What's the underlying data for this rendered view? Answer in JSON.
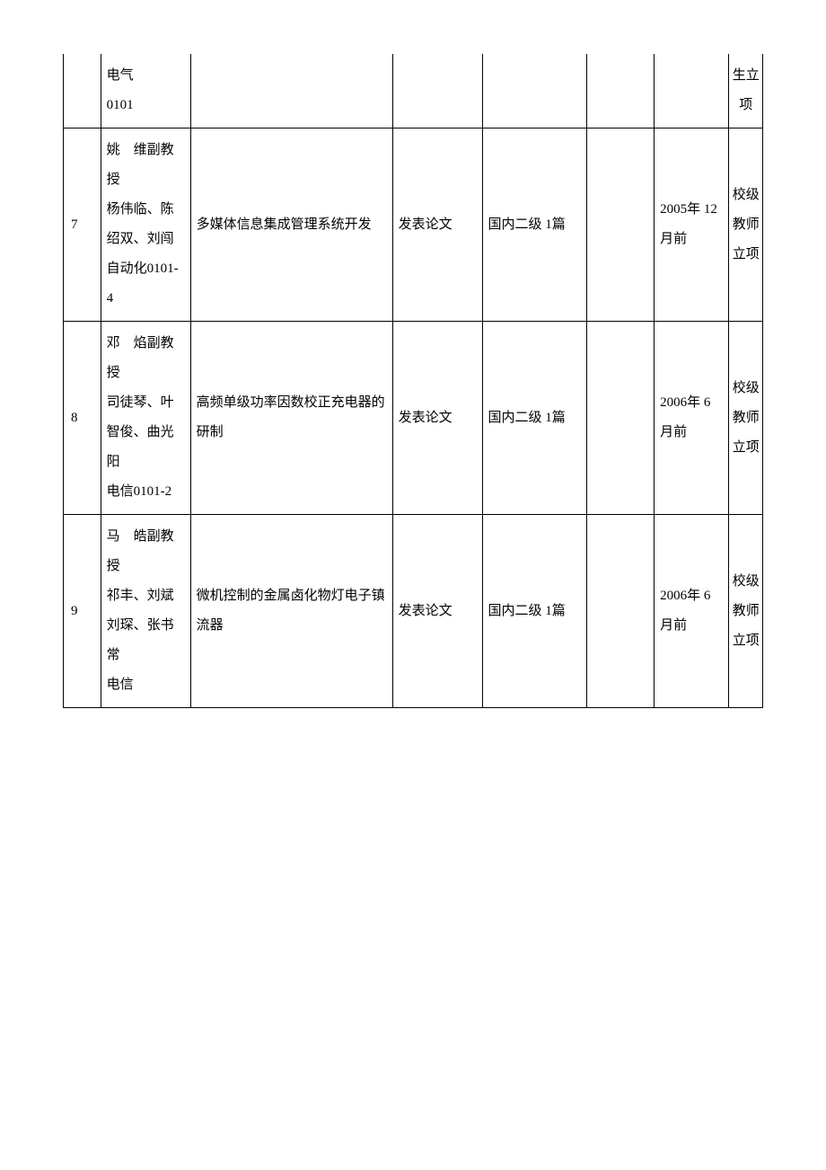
{
  "table": {
    "rows": [
      {
        "num": "",
        "people": "电气\n0101",
        "project": "",
        "type": "",
        "level": "",
        "blank": "",
        "date": "",
        "category": "生立项",
        "partial": true
      },
      {
        "num": "7",
        "people": "姚　维副教授\n杨伟临、陈绍双、刘闯\n自动化0101-4",
        "project": "多媒体信息集成管理系统开发",
        "type": "发表论文",
        "level": "国内二级 1篇",
        "blank": "",
        "date": "2005年 12月前",
        "category": "校级教师立项"
      },
      {
        "num": "8",
        "people": "邓　焰副教授\n司徒琴、叶智俊、曲光阳\n电信0101-2",
        "project": "高频单级功率因数校正充电器的研制",
        "type": "发表论文",
        "level": "国内二级 1篇",
        "blank": "",
        "date": "2006年 6月前",
        "category": "校级教师立项"
      },
      {
        "num": "9",
        "people": "马　皓副教授\n祁丰、刘斌\n刘琛、张书常\n电信",
        "project": "微机控制的金属卤化物灯电子镇流器",
        "type": "发表论文",
        "level": "国内二级 1篇",
        "blank": "",
        "date": "2006年 6月前",
        "category": "校级教师立项"
      }
    ]
  },
  "colors": {
    "background": "#ffffff",
    "text": "#000000",
    "border": "#000000"
  },
  "typography": {
    "font_family": "SimSun",
    "font_size": 15,
    "line_height": 2.2
  }
}
